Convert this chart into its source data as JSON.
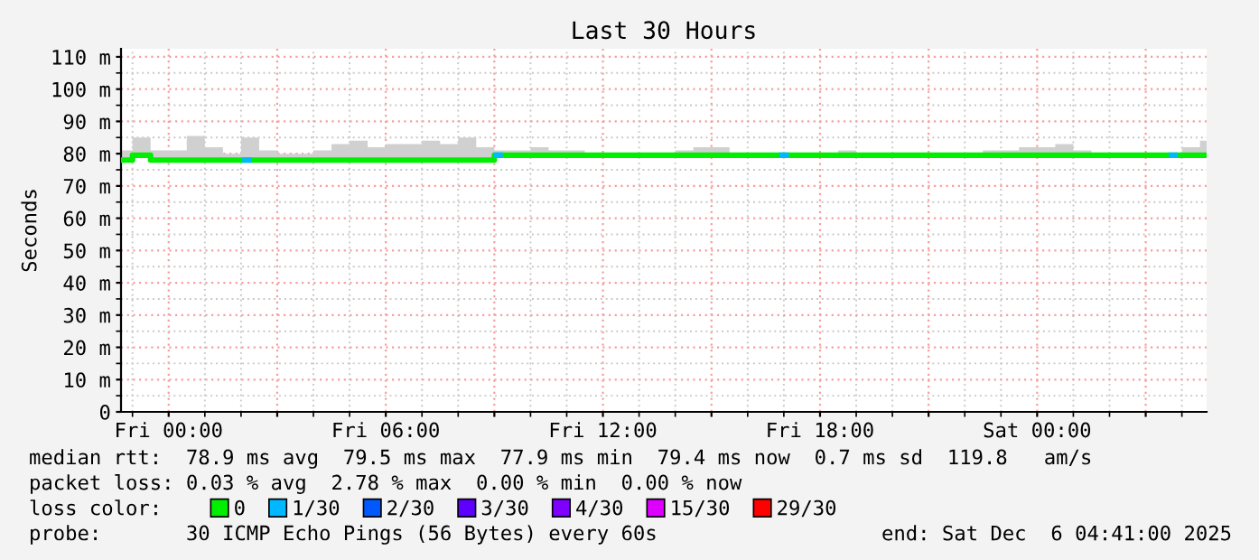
{
  "chart_data": {
    "type": "step",
    "title": "Last 30 Hours",
    "ylabel": "Seconds",
    "xlim": [
      "2025-12-04T22:41",
      "2025-12-06T04:41"
    ],
    "xticks": [
      {
        "value": "2025-12-05T00:00",
        "label": "Fri 00:00"
      },
      {
        "value": "2025-12-05T03:00",
        "label": null
      },
      {
        "value": "2025-12-05T06:00",
        "label": "Fri 06:00"
      },
      {
        "value": "2025-12-05T09:00",
        "label": null
      },
      {
        "value": "2025-12-05T12:00",
        "label": "Fri 12:00"
      },
      {
        "value": "2025-12-05T15:00",
        "label": null
      },
      {
        "value": "2025-12-05T18:00",
        "label": "Fri 18:00"
      },
      {
        "value": "2025-12-05T21:00",
        "label": null
      },
      {
        "value": "2025-12-06T00:00",
        "label": "Sat 00:00"
      },
      {
        "value": "2025-12-06T03:00",
        "label": null
      }
    ],
    "ylim": [
      0,
      112.5
    ],
    "yticks": [
      0,
      {
        "value": 10,
        "label": "10 m"
      },
      {
        "value": 20,
        "label": "20 m"
      },
      {
        "value": 30,
        "label": "30 m"
      },
      {
        "value": 40,
        "label": "40 m"
      },
      {
        "value": 50,
        "label": "50 m"
      },
      {
        "value": 60,
        "label": "60 m"
      },
      {
        "value": 70,
        "label": "70 m"
      },
      {
        "value": 80,
        "label": "80 m"
      },
      {
        "value": 90,
        "label": "90 m"
      },
      {
        "value": 100,
        "label": "100 m"
      },
      {
        "value": 110,
        "label": "110 m"
      }
    ],
    "grid": true,
    "legend": "bottom",
    "series": [
      {
        "name": "0",
        "color": "#00ee00",
        "x": [
          "2025-12-04T22:41",
          "2025-12-04T23:00",
          "2025-12-04T23:30",
          "2025-12-05T00:00",
          "2025-12-05T00:30",
          "2025-12-05T01:00",
          "2025-12-05T01:30",
          "2025-12-05T02:00",
          "2025-12-05T02:30",
          "2025-12-05T03:00",
          "2025-12-05T03:30",
          "2025-12-05T04:00",
          "2025-12-05T04:30",
          "2025-12-05T05:00",
          "2025-12-05T05:30",
          "2025-12-05T06:00",
          "2025-12-05T06:30",
          "2025-12-05T07:00",
          "2025-12-05T07:30",
          "2025-12-05T08:00",
          "2025-12-05T08:30",
          "2025-12-05T09:00",
          "2025-12-05T09:30",
          "2025-12-05T10:00",
          "2025-12-05T10:30",
          "2025-12-05T11:00",
          "2025-12-05T11:30",
          "2025-12-05T12:00",
          "2025-12-05T12:30",
          "2025-12-05T13:00",
          "2025-12-05T13:30",
          "2025-12-05T14:00",
          "2025-12-05T14:30",
          "2025-12-05T15:00",
          "2025-12-05T15:30",
          "2025-12-05T16:00",
          "2025-12-05T16:30",
          "2025-12-05T17:00",
          "2025-12-05T17:30",
          "2025-12-05T18:00",
          "2025-12-05T18:30",
          "2025-12-05T19:00",
          "2025-12-05T19:30",
          "2025-12-05T20:00",
          "2025-12-05T20:30",
          "2025-12-05T21:00",
          "2025-12-05T21:30",
          "2025-12-05T22:00",
          "2025-12-05T22:30",
          "2025-12-05T23:00",
          "2025-12-05T23:30",
          "2025-12-06T00:00",
          "2025-12-06T00:30",
          "2025-12-06T01:00",
          "2025-12-06T01:30",
          "2025-12-06T02:00",
          "2025-12-06T02:30",
          "2025-12-06T03:00",
          "2025-12-06T03:30",
          "2025-12-06T04:00",
          "2025-12-06T04:30",
          "2025-12-06T04:41"
        ],
        "values": [
          78,
          79.5,
          78,
          78,
          78,
          78,
          78,
          78,
          78,
          78,
          78,
          78,
          78,
          78,
          78,
          78,
          78,
          78,
          78,
          78,
          78,
          79.5,
          79.5,
          79.5,
          79.5,
          79.5,
          79.5,
          79.5,
          79.5,
          79.5,
          79.5,
          79.5,
          79.5,
          79.5,
          79.5,
          79.5,
          79.5,
          79.5,
          79.5,
          79.5,
          79.5,
          79.5,
          79.5,
          79.5,
          79.5,
          79.5,
          79.5,
          79.5,
          79.5,
          79.5,
          79.5,
          79.5,
          79.5,
          79.5,
          79.5,
          79.5,
          79.5,
          79.5,
          79.5,
          79.5,
          79.5,
          79.5
        ],
        "lower": [
          77.5,
          79,
          77.5,
          77.5,
          77.5,
          77.5,
          77.5,
          77.5,
          77.5,
          77.5,
          77.5,
          77.5,
          77.5,
          77.5,
          77.5,
          77.5,
          77.5,
          77.5,
          77.5,
          77.5,
          77.5,
          79,
          79,
          79,
          79,
          79,
          79,
          79,
          79,
          79,
          79,
          79,
          79,
          79,
          79,
          79,
          79,
          79,
          79,
          79,
          79,
          79,
          79,
          79,
          79,
          79,
          79,
          79,
          79,
          79,
          79,
          79,
          79,
          79,
          79,
          79,
          79,
          79,
          79,
          79,
          79,
          79
        ],
        "upper": [
          81,
          85,
          81,
          81,
          85.5,
          82,
          80,
          85,
          81,
          80,
          80,
          81,
          83,
          84,
          82,
          83,
          83,
          84,
          83,
          85,
          82,
          81,
          81,
          82,
          81,
          81,
          80,
          80,
          80,
          80,
          80,
          81,
          82,
          82,
          80,
          80,
          80,
          80,
          80,
          80,
          81,
          80,
          80,
          80,
          80,
          80,
          80,
          80,
          81,
          81,
          82,
          82,
          83,
          81,
          80,
          80,
          80,
          80,
          80,
          82,
          84,
          84
        ]
      },
      {
        "name": "1/30",
        "color": "#00b8ff",
        "x": [
          "2025-12-05T02:02",
          "2025-12-05T02:17",
          "2025-12-05T02:18",
          "2025-12-05T08:58",
          "2025-12-05T09:13",
          "2025-12-05T09:14",
          "2025-12-05T16:52",
          "2025-12-05T17:07",
          "2025-12-05T17:08",
          "2025-12-06T03:38",
          "2025-12-06T03:53"
        ],
        "values": [
          78,
          78,
          null,
          79.5,
          79.5,
          null,
          79.5,
          79.5,
          null,
          79.5,
          79.5
        ]
      },
      {
        "name": "2/30",
        "color": "#0059ff"
      },
      {
        "name": "3/30",
        "color": "#5e00ff"
      },
      {
        "name": "4/30",
        "color": "#7e00ff"
      },
      {
        "name": "15/30",
        "color": "#dd00ff"
      },
      {
        "name": "29/30",
        "color": "#ff0000"
      }
    ],
    "annotations": [
      "median rtt:  78.9 ms avg  79.5 ms max  77.9 ms min  79.4 ms now  0.7 ms sd  119.8   am/s",
      "packet loss: 0.03 % avg  2.78 % max  0.00 % min  0.00 % now",
      "loss color:",
      "probe:       30 ICMP Echo Pings (56 Bytes) every 60s",
      "end: Sat Dec  6 04:41:00 2025"
    ]
  }
}
